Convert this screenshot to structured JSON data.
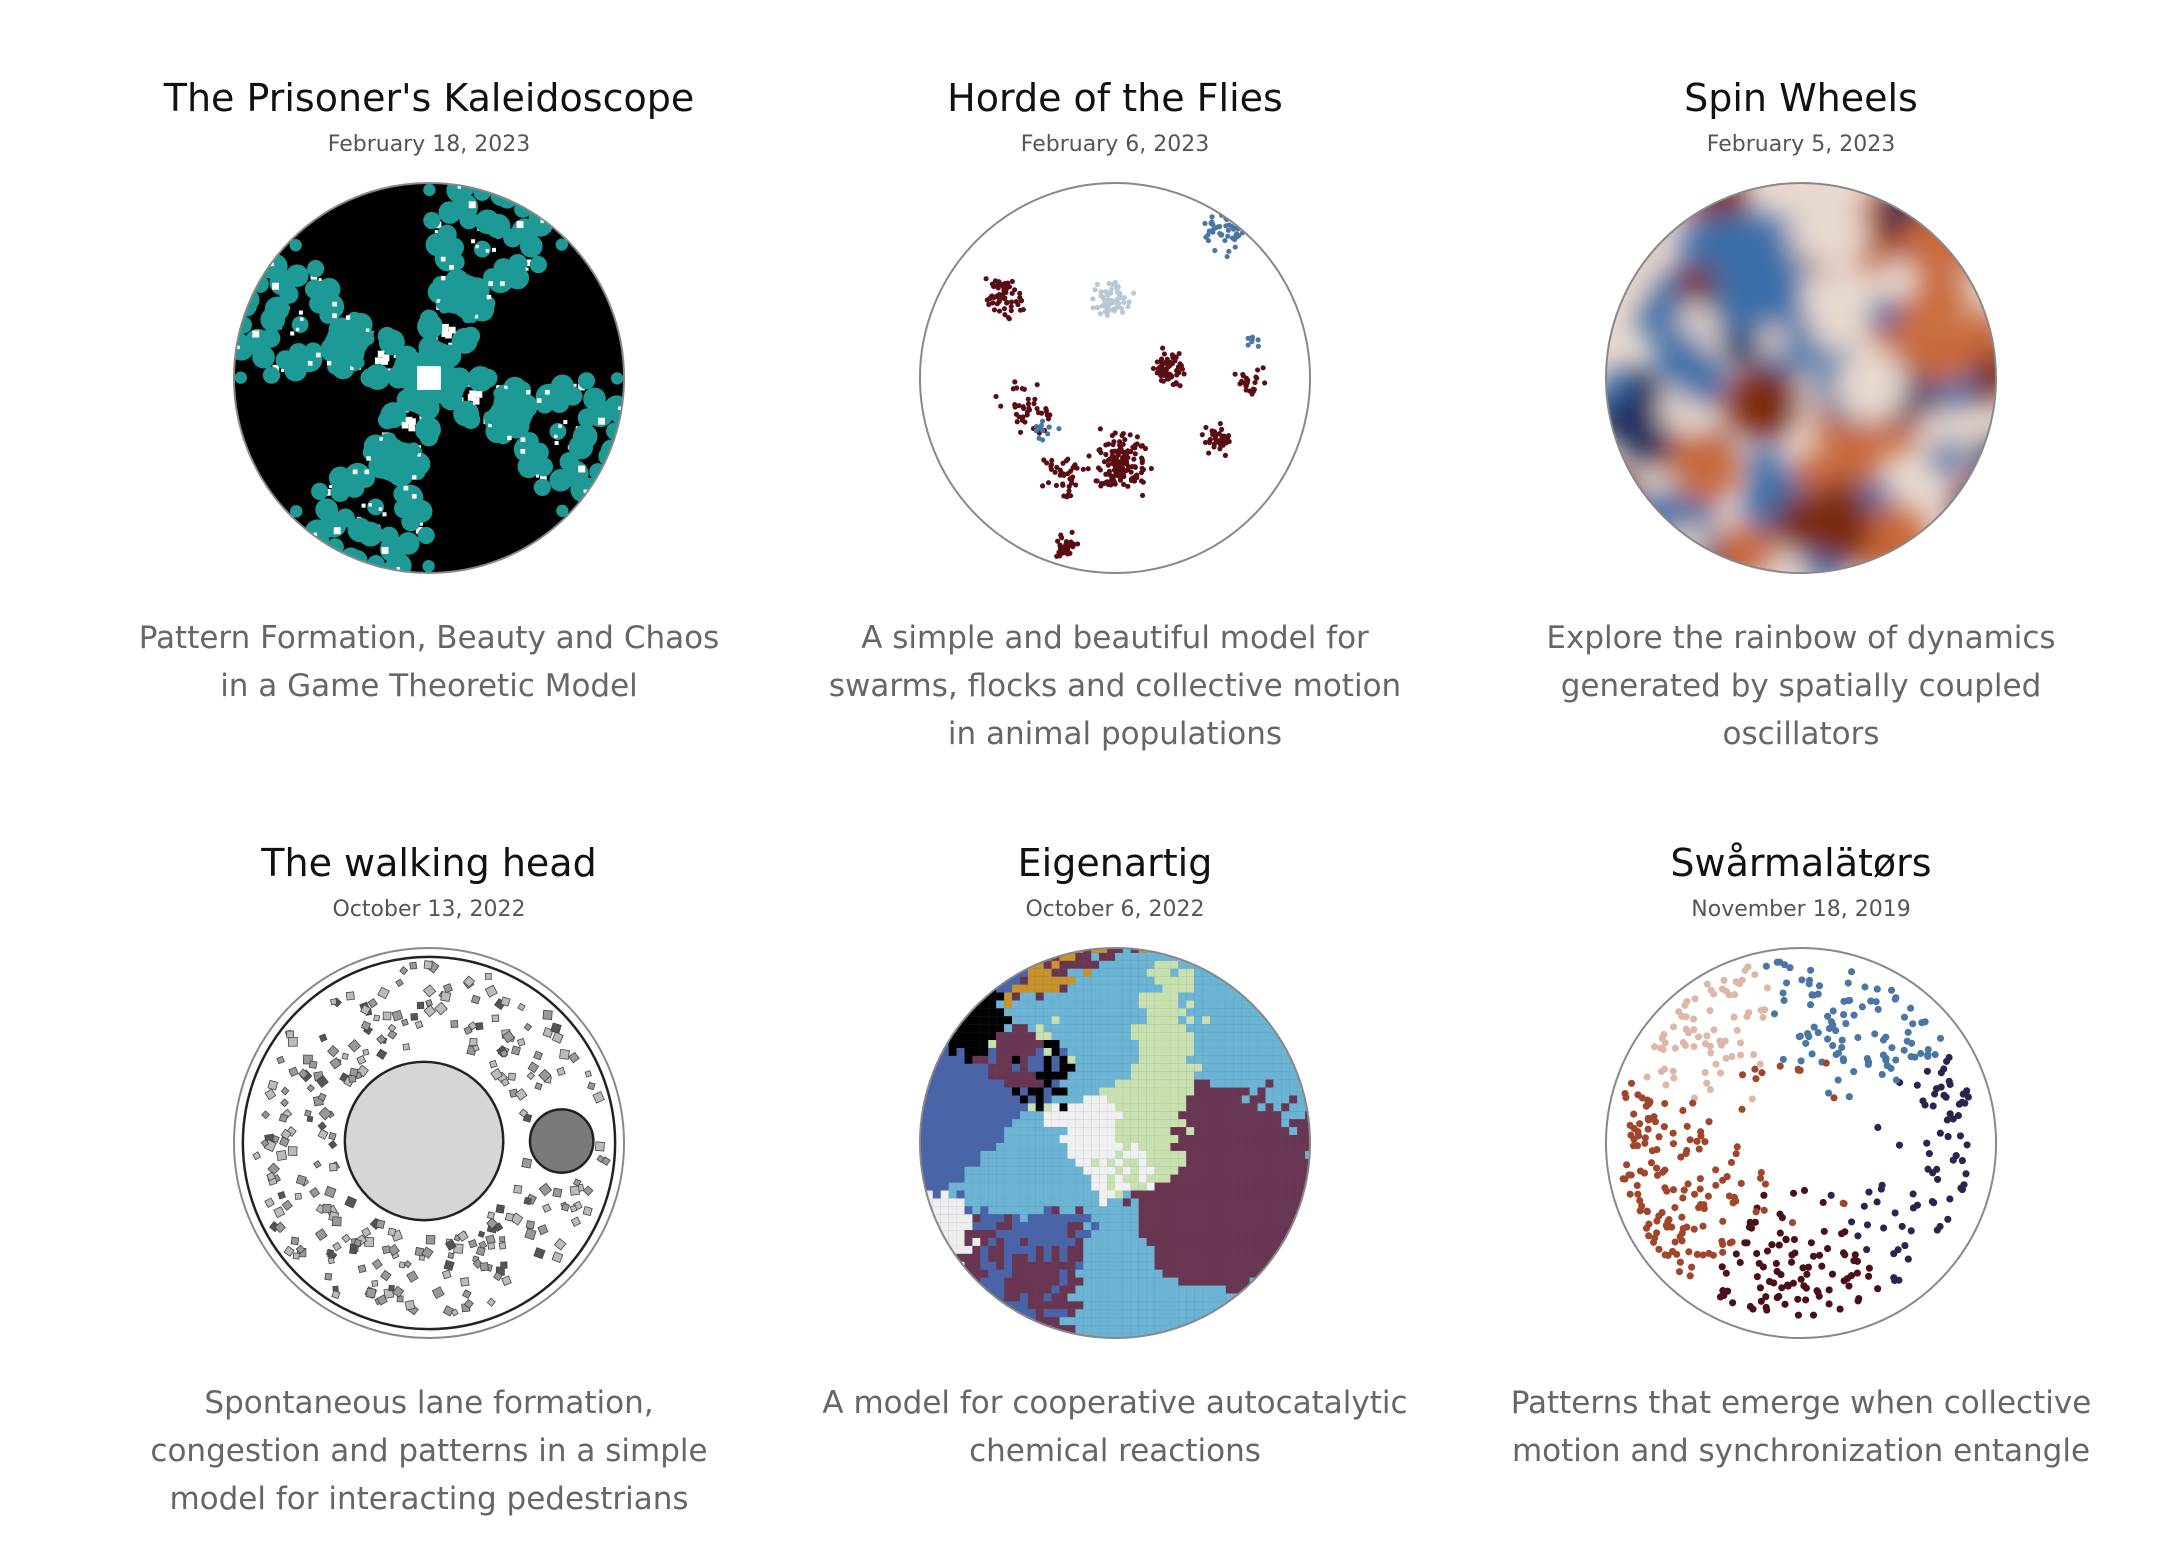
{
  "posts": [
    {
      "title": "The Prisoner's Kaleidoscope",
      "date": "February 18, 2023",
      "description": "Pattern Formation, Beauty and Chaos in a Game Theoretic Model"
    },
    {
      "title": "Horde of the Flies",
      "date": "February 6, 2023",
      "description": "A simple and beautiful model for swarms, flocks and collective motion in animal populations"
    },
    {
      "title": "Spin Wheels",
      "date": "February 5, 2023",
      "description": "Explore the rainbow of dynamics generated by spatially coupled oscillators"
    },
    {
      "title": "The walking head",
      "date": "October 13, 2022",
      "description": "Spontaneous lane formation, congestion and patterns in a simple model for interacting pedestrians"
    },
    {
      "title": "Eigenartig",
      "date": "October 6, 2022",
      "description": "A model for cooperative autocatalytic chemical reactions"
    },
    {
      "title": "Swårmalätørs",
      "date": "November 18, 2019",
      "description": "Patterns that emerge when collective motion and synchronization entangle"
    }
  ],
  "colors": {
    "kaleido_bg": "#000000",
    "kaleido_teal": "#1e9a96",
    "kaleido_white": "#ffffff",
    "flies_dark": "#5a0d14",
    "flies_light": "#b8c8d4",
    "flies_blue": "#4a76a6",
    "spin_dark": "#7a2a10",
    "spin_orange": "#c8693a",
    "spin_light": "#e8d9cf",
    "spin_blue": "#3a6ea8",
    "spin_navy": "#1e2a5a",
    "walk_gray": "#d6d6d6",
    "walk_dark": "#7a7a7a",
    "eigen_purple": "#6a3550",
    "eigen_blue": "#4a64a8",
    "eigen_sky": "#6cb4d4",
    "eigen_gold": "#c8922c",
    "eigen_green": "#c8e0ae",
    "eigen_black": "#000000",
    "swarm_brown": "#a0462a",
    "swarm_peach": "#ddb8a8",
    "swarm_blue": "#4a76a6",
    "swarm_navy": "#2a2450",
    "swarm_maroon": "#4a1018"
  }
}
